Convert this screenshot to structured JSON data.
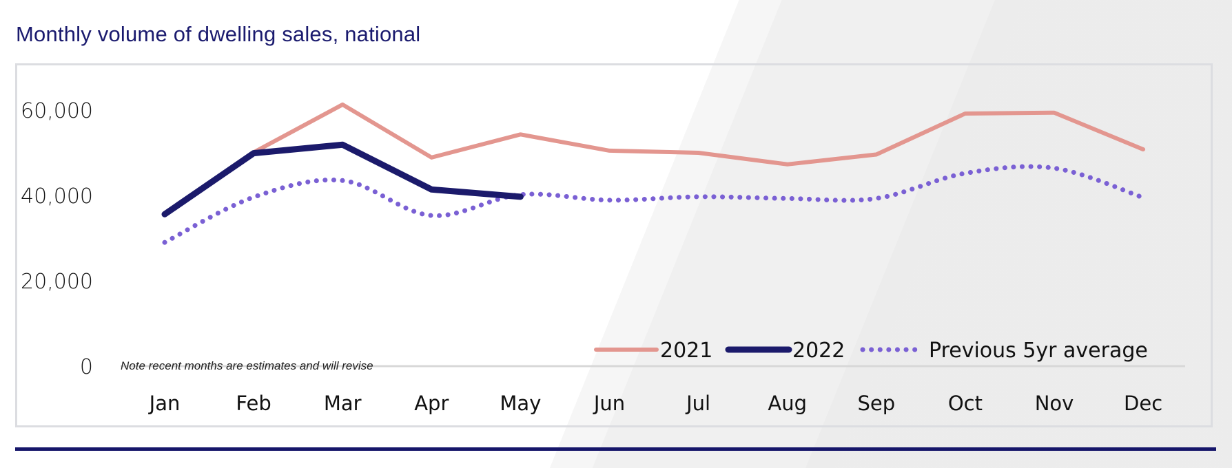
{
  "title": "Monthly volume of dwelling sales, national",
  "note": "Note recent months are estimates and will revise",
  "colors": {
    "s2021": "#e3968f",
    "s2022": "#1b1a6b",
    "avg": "#7a60d4",
    "title": "#1a1a6e",
    "rule": "#16166a"
  },
  "chart_data": {
    "type": "line",
    "title": "Monthly volume of dwelling sales, national",
    "xlabel": "",
    "ylabel": "",
    "categories": [
      "Jan",
      "Feb",
      "Mar",
      "Apr",
      "May",
      "Jun",
      "Jul",
      "Aug",
      "Sep",
      "Oct",
      "Nov",
      "Dec"
    ],
    "yticks": [
      0,
      20000,
      40000,
      60000
    ],
    "ytick_labels": [
      "0",
      "20,000",
      "40,000",
      "60,000"
    ],
    "ylim": [
      0,
      70000
    ],
    "grid": false,
    "legend_position": "bottom-right",
    "series": [
      {
        "name": "2021",
        "style": "solid",
        "values": [
          null,
          50100,
          61300,
          48900,
          54300,
          50500,
          50000,
          47300,
          49600,
          59200,
          59400,
          50800
        ]
      },
      {
        "name": "2022",
        "style": "solid-thick",
        "values": [
          35600,
          49900,
          51900,
          41400,
          39700,
          null,
          null,
          null,
          null,
          null,
          null,
          null
        ]
      },
      {
        "name": "Previous 5yr average",
        "style": "dotted",
        "values": [
          29000,
          39600,
          43500,
          35300,
          40200,
          38900,
          39700,
          39300,
          39300,
          45200,
          46400,
          39500
        ]
      }
    ]
  }
}
